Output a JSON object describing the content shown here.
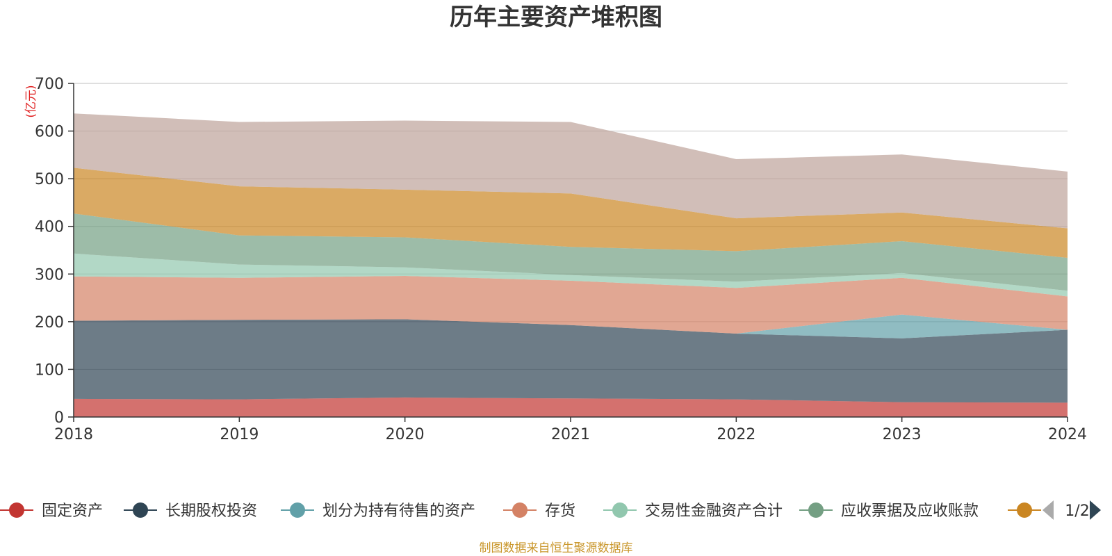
{
  "chart_data": {
    "type": "area",
    "stacked": true,
    "title": "历年主要资产堆积图",
    "unit_label": "(亿元)",
    "x": [
      "2018",
      "2019",
      "2020",
      "2021",
      "2022",
      "2023",
      "2024"
    ],
    "ylim": [
      0,
      700
    ],
    "yticks": [
      0,
      100,
      200,
      300,
      400,
      500,
      600,
      700
    ],
    "grid": true,
    "series": [
      {
        "name": "固定资产",
        "color": "#c23531",
        "values": [
          38,
          37,
          41,
          39,
          37,
          31,
          30
        ]
      },
      {
        "name": "长期股权投资",
        "color": "#2f4554",
        "values": [
          164,
          167,
          164,
          154,
          138,
          134,
          153
        ]
      },
      {
        "name": "划分为持有待售的资产",
        "color": "#61a0a8",
        "values": [
          0,
          0,
          0,
          0,
          0,
          50,
          0
        ]
      },
      {
        "name": "存货",
        "color": "#d48265",
        "values": [
          93,
          88,
          91,
          93,
          96,
          77,
          70
        ]
      },
      {
        "name": "交易性金融资产合计",
        "color": "#91c7ae",
        "values": [
          48,
          28,
          18,
          12,
          13,
          10,
          12
        ]
      },
      {
        "name": "应收票据及应收账款",
        "color": "#749f83",
        "values": [
          84,
          61,
          63,
          59,
          64,
          67,
          69
        ]
      },
      {
        "name": "",
        "color": "#ca8622",
        "values": [
          96,
          103,
          100,
          112,
          69,
          60,
          62
        ]
      },
      {
        "name": "",
        "color": "#bda29a",
        "values": [
          114,
          135,
          145,
          150,
          124,
          122,
          119
        ]
      }
    ],
    "legend": {
      "placement": "bottom",
      "page": "1/2",
      "visible_count": 7
    },
    "source": "制图数据来自恒生聚源数据库"
  }
}
